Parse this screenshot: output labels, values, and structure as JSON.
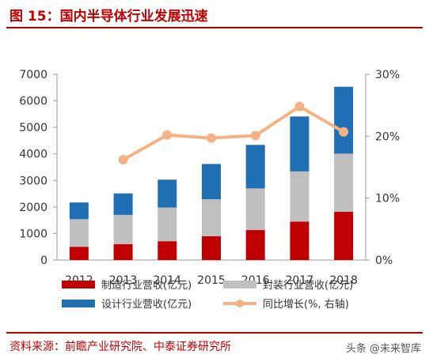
{
  "header": {
    "title": "图 15：国内半导体行业发展迅速"
  },
  "footer": {
    "source": "资料来源：前瞻产业研究院、中泰证券研究所",
    "watermark": "头条 @未来智库"
  },
  "colors": {
    "title_red": "#c00000",
    "manufacturing": "#c00000",
    "packaging": "#bfbfbf",
    "design": "#1f6fb5",
    "growth": "#f4b183"
  },
  "chart_data": {
    "type": "bar",
    "stacked": true,
    "categories": [
      "2012",
      "2013",
      "2014",
      "2015",
      "2016",
      "2017",
      "2018"
    ],
    "series": [
      {
        "name": "制造行业营收(亿元)",
        "axis": "left",
        "values": [
          500,
          600,
          710,
          900,
          1130,
          1450,
          1820
        ]
      },
      {
        "name": "封装行业营收(亿元)",
        "axis": "left",
        "values": [
          1040,
          1100,
          1270,
          1390,
          1570,
          1890,
          2190
        ]
      },
      {
        "name": "设计行业营收(亿元)",
        "axis": "left",
        "values": [
          630,
          810,
          1050,
          1330,
          1640,
          2070,
          2520
        ]
      },
      {
        "name": "同比增长(%, 右轴)",
        "type": "line",
        "axis": "right",
        "values": [
          null,
          16.2,
          20.2,
          19.7,
          20.1,
          24.8,
          20.7
        ]
      }
    ],
    "y_left": {
      "min": 0,
      "max": 7000,
      "ticks": [
        "0",
        "1000",
        "2000",
        "3000",
        "4000",
        "5000",
        "6000",
        "7000"
      ]
    },
    "y_right": {
      "min": 0,
      "max": 30,
      "ticks": [
        "0%",
        "10%",
        "20%",
        "30%"
      ]
    },
    "legend_position": "bottom",
    "grid": false
  }
}
